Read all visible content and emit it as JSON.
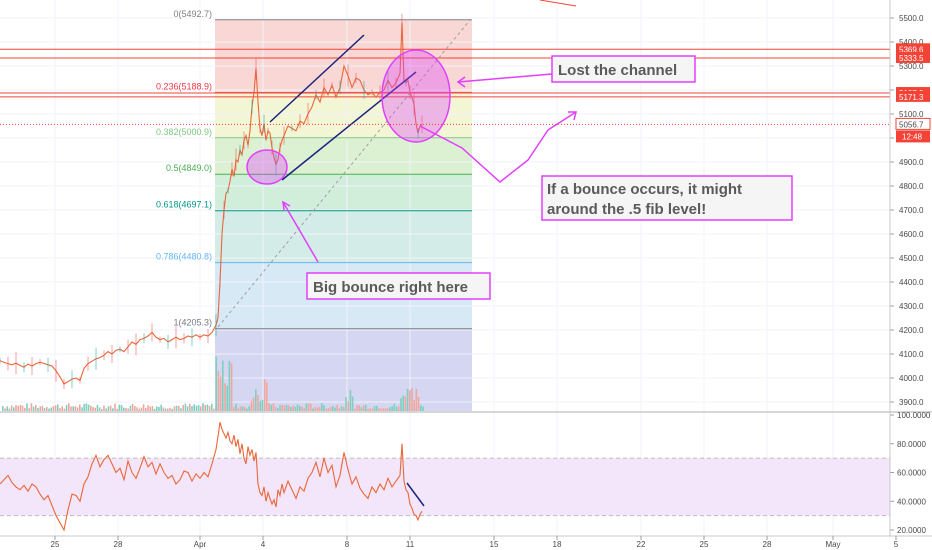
{
  "chart_data": {
    "type": "line",
    "main_panel": {
      "series": [
        {
          "type": "candlestick-close"
        }
      ],
      "y_axis": {
        "ylim": [
          3850,
          5520
        ],
        "ticks": [
          5500,
          5400,
          5300,
          5200,
          5100,
          5000,
          4900,
          4800,
          4700,
          4600,
          4500,
          4400,
          4300,
          4200,
          4100,
          4000,
          3900
        ],
        "tick_labels": [
          "5500.0",
          "5400.0",
          "5300.0",
          "5200.0",
          "5100.0",
          "5000.0",
          "4900.0",
          "4800.0",
          "4700.0",
          "4600.0",
          "4500.0",
          "4400.0",
          "4300.0",
          "4200.0",
          "4100.0",
          "4000.0",
          "3900.0"
        ]
      },
      "close_price": [
        [
          0,
          4072
        ],
        [
          4,
          4065
        ],
        [
          8,
          4060
        ],
        [
          12,
          4055
        ],
        [
          16,
          4062
        ],
        [
          20,
          4052
        ],
        [
          24,
          4045
        ],
        [
          28,
          4058
        ],
        [
          32,
          4050
        ],
        [
          36,
          4060
        ],
        [
          40,
          4066
        ],
        [
          44,
          4061
        ],
        [
          48,
          4055
        ],
        [
          52,
          4050
        ],
        [
          56,
          4030
        ],
        [
          60,
          4005
        ],
        [
          64,
          3975
        ],
        [
          68,
          3985
        ],
        [
          72,
          3995
        ],
        [
          76,
          4000
        ],
        [
          80,
          3990
        ],
        [
          84,
          4040
        ],
        [
          88,
          4060
        ],
        [
          92,
          4070
        ],
        [
          96,
          4080
        ],
        [
          100,
          4085
        ],
        [
          104,
          4095
        ],
        [
          108,
          4110
        ],
        [
          112,
          4100
        ],
        [
          116,
          4115
        ],
        [
          120,
          4120
        ],
        [
          124,
          4110
        ],
        [
          128,
          4130
        ],
        [
          132,
          4150
        ],
        [
          136,
          4140
        ],
        [
          140,
          4160
        ],
        [
          144,
          4165
        ],
        [
          148,
          4175
        ],
        [
          152,
          4190
        ],
        [
          156,
          4170
        ],
        [
          160,
          4160
        ],
        [
          164,
          4165
        ],
        [
          168,
          4150
        ],
        [
          172,
          4160
        ],
        [
          176,
          4170
        ],
        [
          180,
          4160
        ],
        [
          184,
          4165
        ],
        [
          188,
          4175
        ],
        [
          192,
          4170
        ],
        [
          196,
          4180
        ],
        [
          200,
          4170
        ],
        [
          204,
          4180
        ],
        [
          208,
          4175
        ],
        [
          212,
          4190
        ],
        [
          216,
          4220
        ],
        [
          218,
          4250
        ],
        [
          220,
          4400
        ],
        [
          222,
          4600
        ],
        [
          224,
          4700
        ],
        [
          226,
          4770
        ],
        [
          228,
          4780
        ],
        [
          230,
          4820
        ],
        [
          232,
          4870
        ],
        [
          234,
          4840
        ],
        [
          236,
          4910
        ],
        [
          238,
          4900
        ],
        [
          240,
          4950
        ],
        [
          242,
          4930
        ],
        [
          244,
          4990
        ],
        [
          246,
          5010
        ],
        [
          248,
          4970
        ],
        [
          250,
          5030
        ],
        [
          252,
          5130
        ],
        [
          254,
          5190
        ],
        [
          256,
          5290
        ],
        [
          258,
          5150
        ],
        [
          260,
          5040
        ],
        [
          262,
          5010
        ],
        [
          264,
          5060
        ],
        [
          266,
          4990
        ],
        [
          268,
          5030
        ],
        [
          270,
          5020
        ],
        [
          272,
          4960
        ],
        [
          274,
          4920
        ],
        [
          276,
          4890
        ],
        [
          278,
          4910
        ],
        [
          280,
          4960
        ],
        [
          282,
          4990
        ],
        [
          284,
          5010
        ],
        [
          288,
          5050
        ],
        [
          292,
          5040
        ],
        [
          296,
          5030
        ],
        [
          300,
          5070
        ],
        [
          304,
          5060
        ],
        [
          308,
          5100
        ],
        [
          312,
          5130
        ],
        [
          316,
          5180
        ],
        [
          320,
          5150
        ],
        [
          324,
          5210
        ],
        [
          328,
          5180
        ],
        [
          332,
          5220
        ],
        [
          336,
          5170
        ],
        [
          340,
          5210
        ],
        [
          344,
          5300
        ],
        [
          348,
          5260
        ],
        [
          352,
          5210
        ],
        [
          356,
          5250
        ],
        [
          360,
          5240
        ],
        [
          364,
          5200
        ],
        [
          368,
          5180
        ],
        [
          372,
          5190
        ],
        [
          376,
          5170
        ],
        [
          380,
          5190
        ],
        [
          384,
          5200
        ],
        [
          388,
          5240
        ],
        [
          392,
          5210
        ],
        [
          396,
          5230
        ],
        [
          400,
          5270
        ],
        [
          402,
          5480
        ],
        [
          404,
          5240
        ],
        [
          406,
          5230
        ],
        [
          408,
          5240
        ],
        [
          410,
          5190
        ],
        [
          412,
          5170
        ],
        [
          414,
          5140
        ],
        [
          416,
          5060
        ],
        [
          418,
          5020
        ],
        [
          420,
          5050
        ],
        [
          422,
          5057
        ]
      ],
      "fibonacci_levels": [
        {
          "ratio": 0,
          "price": 5492.7,
          "label": "0(5492.7)",
          "color": "#808080"
        },
        {
          "ratio": 0.236,
          "price": 5188.9,
          "label": "0.236(5188.9)",
          "color": "#f23645"
        },
        {
          "ratio": 0.382,
          "price": 5000.9,
          "label": "0.382(5000.9)",
          "color": "#81c784"
        },
        {
          "ratio": 0.5,
          "price": 4849.0,
          "label": "0.5(4849.0)",
          "color": "#4caf50"
        },
        {
          "ratio": 0.618,
          "price": 4697.1,
          "label": "0.618(4697.1)",
          "color": "#009688"
        },
        {
          "ratio": 0.786,
          "price": 4480.8,
          "label": "0.786(4480.8)",
          "color": "#64b5f6"
        },
        {
          "ratio": 1,
          "price": 4205.3,
          "label": "1(4205.3)",
          "color": "#787b86"
        }
      ],
      "horizontal_lines": [
        {
          "price": 5369.6,
          "label": "5369.6"
        },
        {
          "price": 5333.5,
          "label": "5333.5"
        },
        {
          "price": 5187.3,
          "label": "5187.3"
        },
        {
          "price": 5171.3,
          "label": "5171.3"
        }
      ],
      "current_price": {
        "price": 5056.7,
        "label": "5056.7",
        "countdown": "12:48"
      }
    },
    "indicator_panel": {
      "type": "rsi",
      "y_axis": {
        "ylim": [
          15,
          102
        ],
        "ticks": [
          100,
          80,
          60,
          40,
          20
        ],
        "tick_labels": [
          "100.0000",
          "80.0000",
          "60.0000",
          "40.0000",
          "20.0000"
        ]
      },
      "band": [
        30,
        70
      ],
      "values": [
        [
          0,
          52
        ],
        [
          4,
          55
        ],
        [
          8,
          58
        ],
        [
          12,
          53
        ],
        [
          16,
          50
        ],
        [
          20,
          48
        ],
        [
          24,
          51
        ],
        [
          28,
          47
        ],
        [
          32,
          52
        ],
        [
          36,
          50
        ],
        [
          40,
          45
        ],
        [
          44,
          41
        ],
        [
          48,
          44
        ],
        [
          52,
          37
        ],
        [
          56,
          30
        ],
        [
          60,
          25
        ],
        [
          64,
          20
        ],
        [
          68,
          34
        ],
        [
          72,
          45
        ],
        [
          76,
          44
        ],
        [
          80,
          40
        ],
        [
          84,
          52
        ],
        [
          88,
          57
        ],
        [
          92,
          66
        ],
        [
          96,
          72
        ],
        [
          100,
          64
        ],
        [
          104,
          69
        ],
        [
          108,
          72
        ],
        [
          112,
          66
        ],
        [
          116,
          60
        ],
        [
          120,
          63
        ],
        [
          124,
          55
        ],
        [
          128,
          68
        ],
        [
          132,
          60
        ],
        [
          136,
          56
        ],
        [
          140,
          63
        ],
        [
          144,
          71
        ],
        [
          148,
          64
        ],
        [
          152,
          67
        ],
        [
          156,
          59
        ],
        [
          160,
          66
        ],
        [
          164,
          60
        ],
        [
          168,
          56
        ],
        [
          172,
          58
        ],
        [
          176,
          52
        ],
        [
          180,
          55
        ],
        [
          184,
          61
        ],
        [
          188,
          60
        ],
        [
          192,
          54
        ],
        [
          196,
          59
        ],
        [
          200,
          56
        ],
        [
          204,
          60
        ],
        [
          208,
          57
        ],
        [
          212,
          66
        ],
        [
          216,
          76
        ],
        [
          218,
          85
        ],
        [
          220,
          95
        ],
        [
          222,
          90
        ],
        [
          224,
          87
        ],
        [
          226,
          84
        ],
        [
          228,
          88
        ],
        [
          230,
          82
        ],
        [
          232,
          80
        ],
        [
          234,
          86
        ],
        [
          236,
          78
        ],
        [
          238,
          83
        ],
        [
          240,
          73
        ],
        [
          242,
          80
        ],
        [
          244,
          70
        ],
        [
          246,
          66
        ],
        [
          248,
          78
        ],
        [
          250,
          72
        ],
        [
          252,
          76
        ],
        [
          254,
          68
        ],
        [
          256,
          74
        ],
        [
          258,
          52
        ],
        [
          260,
          46
        ],
        [
          262,
          44
        ],
        [
          264,
          50
        ],
        [
          266,
          40
        ],
        [
          268,
          46
        ],
        [
          270,
          42
        ],
        [
          272,
          38
        ],
        [
          274,
          41
        ],
        [
          276,
          36
        ],
        [
          278,
          48
        ],
        [
          280,
          44
        ],
        [
          282,
          52
        ],
        [
          284,
          46
        ],
        [
          288,
          54
        ],
        [
          292,
          48
        ],
        [
          296,
          42
        ],
        [
          300,
          50
        ],
        [
          304,
          47
        ],
        [
          308,
          56
        ],
        [
          312,
          60
        ],
        [
          316,
          67
        ],
        [
          320,
          57
        ],
        [
          324,
          70
        ],
        [
          328,
          60
        ],
        [
          332,
          65
        ],
        [
          336,
          50
        ],
        [
          340,
          58
        ],
        [
          344,
          74
        ],
        [
          348,
          62
        ],
        [
          352,
          52
        ],
        [
          356,
          57
        ],
        [
          360,
          49
        ],
        [
          364,
          45
        ],
        [
          368,
          42
        ],
        [
          372,
          50
        ],
        [
          376,
          46
        ],
        [
          380,
          52
        ],
        [
          384,
          48
        ],
        [
          388,
          56
        ],
        [
          392,
          50
        ],
        [
          396,
          54
        ],
        [
          400,
          58
        ],
        [
          402,
          80
        ],
        [
          404,
          54
        ],
        [
          406,
          48
        ],
        [
          408,
          46
        ],
        [
          410,
          38
        ],
        [
          412,
          35
        ],
        [
          414,
          31
        ],
        [
          416,
          30
        ],
        [
          418,
          27
        ],
        [
          420,
          31
        ],
        [
          422,
          33
        ]
      ]
    },
    "x_axis": {
      "tick_labels": [
        "25",
        "28",
        "Apr",
        "4",
        "8",
        "11",
        "15",
        "18",
        "22",
        "25",
        "28",
        "May",
        "5"
      ],
      "tick_positions": [
        55,
        118,
        200,
        263,
        347,
        410,
        494,
        557,
        641,
        704,
        767,
        833,
        896
      ]
    },
    "annotations": [
      {
        "text": "Lost the channel"
      },
      {
        "text": "If a bounce occurs, it might"
      },
      {
        "text": "around the .5 fib level!"
      },
      {
        "text": "Big bounce right here"
      }
    ],
    "colors": {
      "line": "#e8683a",
      "annotation": "#e040fb",
      "channel": "#1a237e",
      "hline": "#f44336"
    }
  }
}
